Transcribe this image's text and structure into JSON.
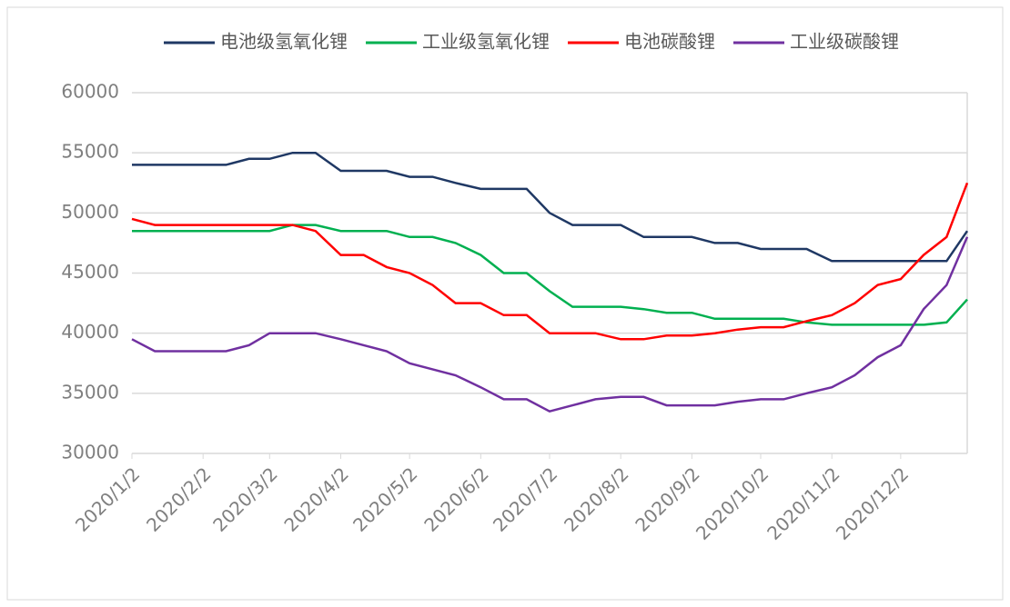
{
  "chart_data": {
    "type": "line",
    "x": [
      "2020/1/2",
      "2020/1/12",
      "2020/1/22",
      "2020/2/2",
      "2020/2/12",
      "2020/2/22",
      "2020/3/2",
      "2020/3/12",
      "2020/3/22",
      "2020/4/2",
      "2020/4/12",
      "2020/4/22",
      "2020/5/2",
      "2020/5/12",
      "2020/5/22",
      "2020/6/2",
      "2020/6/12",
      "2020/6/22",
      "2020/7/2",
      "2020/7/12",
      "2020/7/22",
      "2020/8/2",
      "2020/8/12",
      "2020/8/22",
      "2020/9/2",
      "2020/9/12",
      "2020/9/22",
      "2020/10/2",
      "2020/10/12",
      "2020/10/22",
      "2020/11/2",
      "2020/11/12",
      "2020/11/22",
      "2020/12/2",
      "2020/12/12",
      "2020/12/22",
      "2020/12/31"
    ],
    "series": [
      {
        "name": "电池级氢氧化锂",
        "color": "#1f3864",
        "values": [
          54000,
          54000,
          54000,
          54000,
          54000,
          54500,
          54500,
          55000,
          55000,
          53500,
          53500,
          53500,
          53000,
          53000,
          52500,
          52000,
          52000,
          52000,
          50000,
          49000,
          49000,
          49000,
          48000,
          48000,
          48000,
          47500,
          47500,
          47000,
          47000,
          47000,
          46000,
          46000,
          46000,
          46000,
          46000,
          46000,
          48500
        ]
      },
      {
        "name": "工业级氢氧化锂",
        "color": "#00b050",
        "values": [
          48500,
          48500,
          48500,
          48500,
          48500,
          48500,
          48500,
          49000,
          49000,
          48500,
          48500,
          48500,
          48000,
          48000,
          47500,
          46500,
          45000,
          45000,
          43500,
          42200,
          42200,
          42200,
          42000,
          41700,
          41700,
          41200,
          41200,
          41200,
          41200,
          40900,
          40700,
          40700,
          40700,
          40700,
          40700,
          40900,
          42800
        ]
      },
      {
        "name": "电池碳酸锂",
        "color": "#ff0000",
        "values": [
          49500,
          49000,
          49000,
          49000,
          49000,
          49000,
          49000,
          49000,
          48500,
          46500,
          46500,
          45500,
          45000,
          44000,
          42500,
          42500,
          41500,
          41500,
          40000,
          40000,
          40000,
          39500,
          39500,
          39800,
          39800,
          40000,
          40300,
          40500,
          40500,
          41000,
          41500,
          42500,
          44000,
          44500,
          46500,
          48000,
          52500
        ]
      },
      {
        "name": "工业级碳酸锂",
        "color": "#7030a0",
        "values": [
          39500,
          38500,
          38500,
          38500,
          38500,
          39000,
          40000,
          40000,
          40000,
          39500,
          39000,
          38500,
          37500,
          37000,
          36500,
          35500,
          34500,
          34500,
          33500,
          34000,
          34500,
          34700,
          34700,
          34000,
          34000,
          34000,
          34300,
          34500,
          34500,
          35000,
          35500,
          36500,
          38000,
          39000,
          42000,
          44000,
          48000
        ]
      }
    ],
    "xlim": [
      "2020/1/2",
      "2020/12/31"
    ],
    "xticks": [
      "2020/1/2",
      "2020/2/2",
      "2020/3/2",
      "2020/4/2",
      "2020/5/2",
      "2020/6/2",
      "2020/7/2",
      "2020/8/2",
      "2020/9/2",
      "2020/10/2",
      "2020/11/2",
      "2020/12/2"
    ],
    "ylim": [
      30000,
      60000
    ],
    "yticks": [
      30000,
      35000,
      40000,
      45000,
      50000,
      55000,
      60000
    ],
    "grid": true,
    "legend": "top"
  }
}
